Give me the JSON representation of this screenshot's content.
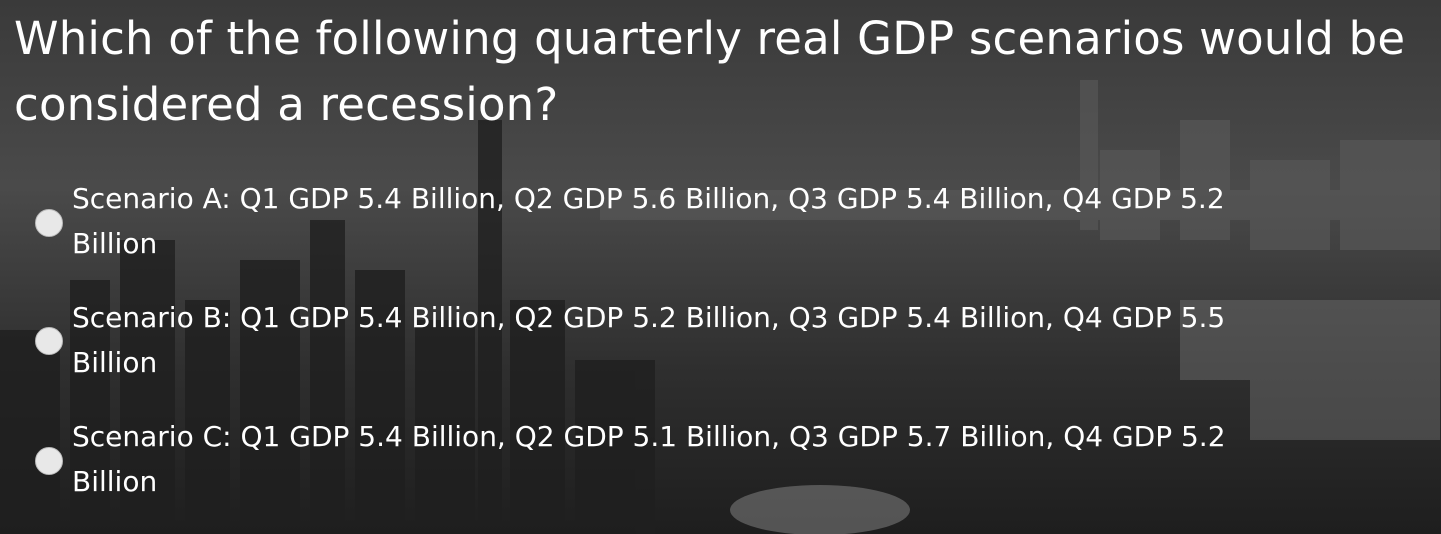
{
  "question": "Which of the following quarterly real GDP scenarios would be considered a recession?",
  "options": [
    {
      "label": "Scenario A: Q1 GDP 5.4 Billion, Q2 GDP 5.6 Billion, Q3 GDP 5.4 Billion, Q4 GDP 5.2 Billion"
    },
    {
      "label": "Scenario B: Q1 GDP 5.4 Billion, Q2 GDP 5.2 Billion, Q3 GDP 5.4 Billion, Q4 GDP 5.5 Billion"
    },
    {
      "label": "Scenario C: Q1 GDP 5.4 Billion, Q2 GDP 5.1 Billion, Q3 GDP 5.7 Billion, Q4 GDP 5.2 Billion"
    }
  ]
}
